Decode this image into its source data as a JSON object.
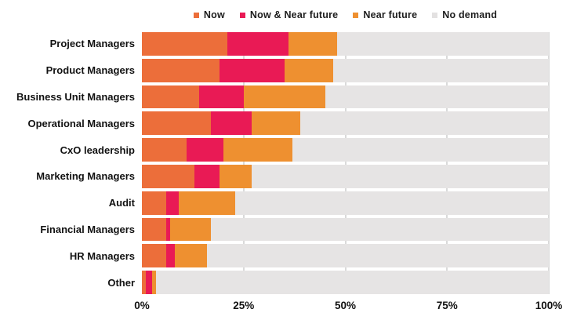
{
  "chart_data": {
    "type": "bar",
    "orientation": "horizontal-stacked",
    "title": "",
    "categories": [
      "Project Managers",
      "Product Managers",
      "Business Unit Managers",
      "Operational Managers",
      "CxO leadership",
      "Marketing Managers",
      "Audit",
      "Financial Managers",
      "HR Managers",
      "Other"
    ],
    "series": [
      {
        "name": "Now",
        "color": "#EC6E3A",
        "values": [
          21,
          19,
          14,
          17,
          11,
          13,
          6,
          6,
          6,
          1
        ]
      },
      {
        "name": "Now & Near future",
        "color": "#E91A55",
        "values": [
          15,
          16,
          11,
          10,
          9,
          6,
          3,
          1,
          2,
          1.5
        ]
      },
      {
        "name": "Near future",
        "color": "#EE9030",
        "values": [
          12,
          12,
          20,
          12,
          17,
          8,
          14,
          10,
          8,
          1
        ]
      },
      {
        "name": "No demand",
        "color": "#E6E4E4",
        "values": [
          52,
          53,
          55,
          61,
          63,
          73,
          77,
          83,
          84,
          96.5
        ]
      }
    ],
    "x_ticks": [
      "0%",
      "25%",
      "50%",
      "75%",
      "100%"
    ],
    "x_tick_positions": [
      0,
      25,
      50,
      75,
      100
    ],
    "xlim": [
      0,
      100
    ],
    "legend_position": "top",
    "grid": "vertical lines at 25, 50, 75, 100 visible between bars",
    "gridline_color": "#dadada",
    "background_color": "#ffffff"
  },
  "legend": {
    "items": [
      {
        "label": "Now",
        "color": "#EC6E3A"
      },
      {
        "label": "Now & Near future",
        "color": "#E91A55"
      },
      {
        "label": "Near future",
        "color": "#EE9030"
      },
      {
        "label": "No demand",
        "color": "#E3E1E1"
      }
    ]
  }
}
